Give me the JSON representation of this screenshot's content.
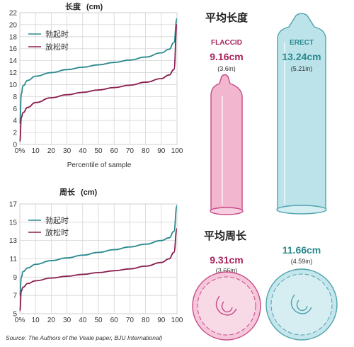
{
  "chart_data": [
    {
      "type": "line",
      "ylabel": "长度",
      "yunit": "(cm)",
      "xlabel": "Percentile of sample",
      "xlim": [
        0,
        100
      ],
      "ylim": [
        0,
        22
      ],
      "xticks": [
        "0%",
        "10",
        "20",
        "30",
        "40",
        "50",
        "60",
        "70",
        "80",
        "90",
        "100"
      ],
      "yticks": [
        "0",
        "2",
        "4",
        "6",
        "8",
        "10",
        "12",
        "14",
        "16",
        "18",
        "20",
        "22"
      ],
      "grid": true,
      "legend_position": "top-left",
      "x": [
        0,
        1,
        2,
        5,
        10,
        20,
        30,
        40,
        50,
        60,
        70,
        80,
        90,
        95,
        98,
        100
      ],
      "series": [
        {
          "name": "勃起时",
          "color": "#2a8a8e",
          "values": [
            3.5,
            8.5,
            9.8,
            10.7,
            11.4,
            12.0,
            12.5,
            12.9,
            13.3,
            13.7,
            14.1,
            14.6,
            15.3,
            15.9,
            17.0,
            21.0
          ]
        },
        {
          "name": "放松时",
          "color": "#8a1f4f",
          "values": [
            0.5,
            4.5,
            5.3,
            6.2,
            7.0,
            7.8,
            8.3,
            8.7,
            9.1,
            9.5,
            9.9,
            10.4,
            11.0,
            11.6,
            12.5,
            20.0
          ]
        }
      ]
    },
    {
      "type": "line",
      "ylabel": "周长",
      "yunit": "(cm)",
      "xlim": [
        0,
        100
      ],
      "ylim": [
        5,
        17
      ],
      "xticks": [
        "0%",
        "10",
        "20",
        "30",
        "40",
        "50",
        "60",
        "70",
        "80",
        "90",
        "100"
      ],
      "yticks": [
        "5",
        "7",
        "9",
        "11",
        "13",
        "15",
        "17"
      ],
      "grid": true,
      "legend_position": "top-left",
      "x": [
        0,
        1,
        2,
        5,
        10,
        20,
        30,
        40,
        50,
        60,
        70,
        80,
        90,
        95,
        98,
        100
      ],
      "series": [
        {
          "name": "勃起时",
          "color": "#2a8a8e",
          "values": [
            7.0,
            9.0,
            9.6,
            10.0,
            10.4,
            10.8,
            11.1,
            11.4,
            11.7,
            12.0,
            12.3,
            12.6,
            13.0,
            13.3,
            14.0,
            16.8
          ]
        },
        {
          "name": "放松时",
          "color": "#8a1f4f",
          "values": [
            5.3,
            7.5,
            7.9,
            8.3,
            8.6,
            8.9,
            9.1,
            9.3,
            9.5,
            9.7,
            9.9,
            10.2,
            10.6,
            11.0,
            11.7,
            14.3
          ]
        }
      ]
    }
  ],
  "source": "Source: The Authors of the Veale paper, BJU International)",
  "length_panel": {
    "title": "平均长度",
    "flaccid": {
      "label": "FLACCID",
      "value": "9.16cm",
      "inches": "(3.6in)",
      "color": "#a8215c"
    },
    "erect": {
      "label": "ERECT",
      "value": "13.24cm",
      "inches": "(5.21in)",
      "color": "#2a8a8e"
    }
  },
  "girth_panel": {
    "title": "平均周长",
    "flaccid": {
      "value": "9.31cm",
      "inches": "(3.66in)",
      "color": "#a8215c"
    },
    "erect": {
      "value": "11.66cm",
      "inches": "(4.59in)",
      "color": "#2a8a8e"
    }
  }
}
